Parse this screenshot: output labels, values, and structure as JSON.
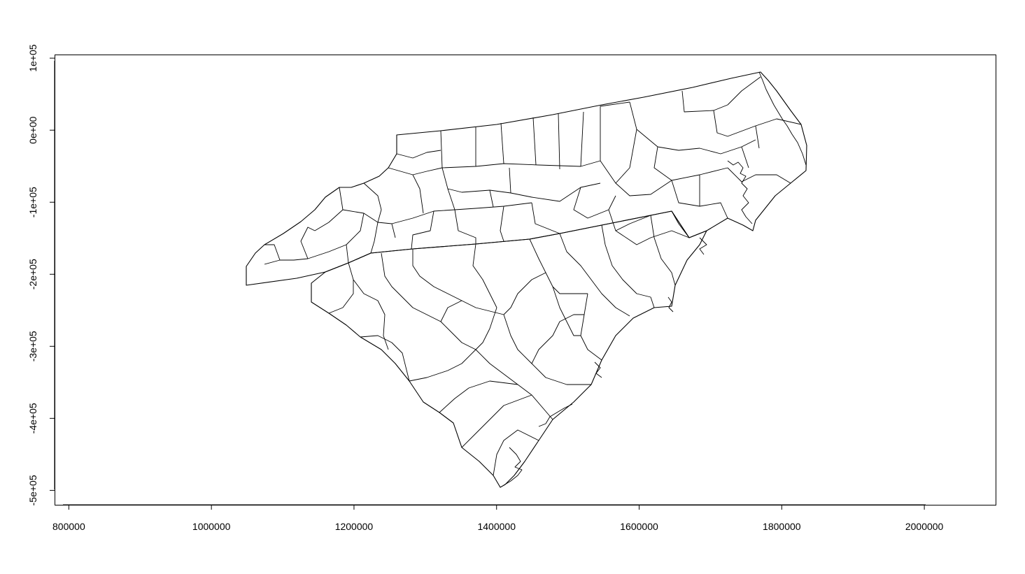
{
  "chart_data": {
    "type": "map",
    "title": "",
    "xlabel": "",
    "ylabel": "",
    "xlim": [
      780000,
      2100000
    ],
    "ylim": [
      -520000,
      105000
    ],
    "x_ticks": [
      800000,
      1000000,
      1200000,
      1400000,
      1600000,
      1800000,
      2000000
    ],
    "x_tick_labels": [
      "800000",
      "1000000",
      "1200000",
      "1400000",
      "1600000",
      "1800000",
      "2000000"
    ],
    "y_ticks": [
      100000,
      0,
      -100000,
      -200000,
      -300000,
      -400000,
      -500000
    ],
    "y_tick_labels": [
      "1e+05",
      "0e+00",
      "-1e+05",
      "-2e+05",
      "-3e+05",
      "-4e+05",
      "-5e+05"
    ],
    "frame": true,
    "grid": false,
    "content": "County boundary polygons of North Carolina and South Carolina (outline only, no fill)",
    "stroke_color": "#000000",
    "fill_color": "none"
  }
}
